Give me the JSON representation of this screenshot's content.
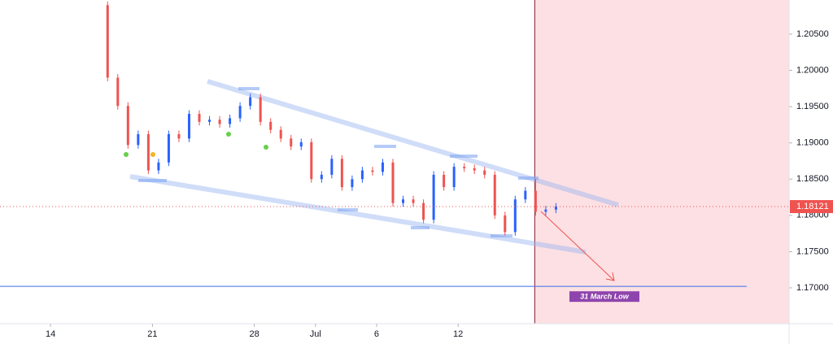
{
  "chart_data": {
    "type": "candlestick",
    "x": [
      2.8,
      3.3,
      3.8,
      4.3,
      4.8,
      5.3,
      5.8,
      6.3,
      6.8,
      7.3,
      7.8,
      8.3,
      8.8,
      9.3,
      9.8,
      10.3,
      10.8,
      11.3,
      11.8,
      12.3,
      12.8,
      13.3,
      13.8,
      14.3,
      14.8,
      15.3,
      15.8,
      16.3,
      16.8,
      17.3,
      17.8,
      18.3,
      18.8,
      19.3,
      19.8,
      20.3,
      20.8,
      21.3,
      21.8,
      22.3,
      22.8,
      23.3,
      23.8,
      24.3,
      24.8
    ],
    "open": [
      1.209,
      1.199,
      1.1951,
      1.1897,
      1.1912,
      1.1862,
      1.1873,
      1.1912,
      1.1906,
      1.194,
      1.1929,
      1.1932,
      1.1926,
      1.1934,
      1.1951,
      1.1963,
      1.1929,
      1.1918,
      1.1906,
      1.1895,
      1.1901,
      1.185,
      1.1856,
      1.1878,
      1.1839,
      1.185,
      1.1862,
      1.186,
      1.1873,
      1.1817,
      1.1822,
      1.1817,
      1.1794,
      1.1856,
      1.1839,
      1.1867,
      1.1865,
      1.1862,
      1.1856,
      1.18,
      1.1777,
      1.1822,
      1.1834,
      1.1805,
      1.1808
    ],
    "high": [
      1.2095,
      1.1995,
      1.1956,
      1.1917,
      1.1917,
      1.1878,
      1.1917,
      1.1917,
      1.1945,
      1.1945,
      1.1937,
      1.1937,
      1.1939,
      1.1956,
      1.1968,
      1.1968,
      1.1934,
      1.1923,
      1.1911,
      1.1906,
      1.1906,
      1.1861,
      1.1883,
      1.1883,
      1.1855,
      1.1867,
      1.1867,
      1.1878,
      1.1878,
      1.1827,
      1.1827,
      1.1822,
      1.1861,
      1.1861,
      1.1872,
      1.1872,
      1.187,
      1.1867,
      1.1861,
      1.1805,
      1.1827,
      1.1839,
      1.185,
      1.1813,
      1.1817
    ],
    "low": [
      1.1985,
      1.1946,
      1.1892,
      1.1892,
      1.1857,
      1.1857,
      1.1868,
      1.1901,
      1.1901,
      1.1924,
      1.1924,
      1.1921,
      1.1921,
      1.1929,
      1.1946,
      1.1924,
      1.1913,
      1.1901,
      1.189,
      1.189,
      1.1845,
      1.1845,
      1.1851,
      1.1834,
      1.1834,
      1.1845,
      1.1855,
      1.1855,
      1.1812,
      1.1812,
      1.1812,
      1.1789,
      1.1789,
      1.1834,
      1.1834,
      1.186,
      1.1857,
      1.1851,
      1.1795,
      1.1772,
      1.1772,
      1.1817,
      1.18,
      1.18,
      1.1803
    ],
    "close": [
      1.199,
      1.1951,
      1.1897,
      1.1912,
      1.1862,
      1.1873,
      1.1912,
      1.1906,
      1.194,
      1.1929,
      1.1932,
      1.1926,
      1.1934,
      1.1951,
      1.1963,
      1.1929,
      1.1918,
      1.1906,
      1.1895,
      1.1901,
      1.185,
      1.1856,
      1.1878,
      1.1839,
      1.185,
      1.1862,
      1.186,
      1.1873,
      1.1817,
      1.1822,
      1.1817,
      1.1794,
      1.1856,
      1.1839,
      1.1867,
      1.1865,
      1.1862,
      1.1856,
      1.18,
      1.1777,
      1.1822,
      1.1834,
      1.1805,
      1.1808,
      1.1812
    ],
    "up_color": "#2962ff",
    "down_color": "#ef5350",
    "xlim": [
      -2.48,
      36.24
    ],
    "xticks": [
      {
        "value": 0,
        "label": "14"
      },
      {
        "value": 5,
        "label": "21"
      },
      {
        "value": 10,
        "label": "28"
      },
      {
        "value": 13,
        "label": "Jul"
      },
      {
        "value": 16,
        "label": "6"
      },
      {
        "value": 20,
        "label": "12"
      }
    ],
    "ylim": [
      1.16506,
      1.20971
    ],
    "yticks": [
      {
        "value": 1.17,
        "label": "1.17000"
      },
      {
        "value": 1.175,
        "label": "1.17500"
      },
      {
        "value": 1.18,
        "label": "1.18000"
      },
      {
        "value": 1.185,
        "label": "1.18500"
      },
      {
        "value": 1.19,
        "label": "1.19000"
      },
      {
        "value": 1.195,
        "label": "1.19500"
      },
      {
        "value": 1.2,
        "label": "1.20000"
      },
      {
        "value": 1.205,
        "label": "1.20500"
      }
    ],
    "last_price": 1.18121,
    "vertical_line_x": 23.76,
    "annotation": {
      "text": "31 March Low",
      "value": 1.1702
    }
  }
}
